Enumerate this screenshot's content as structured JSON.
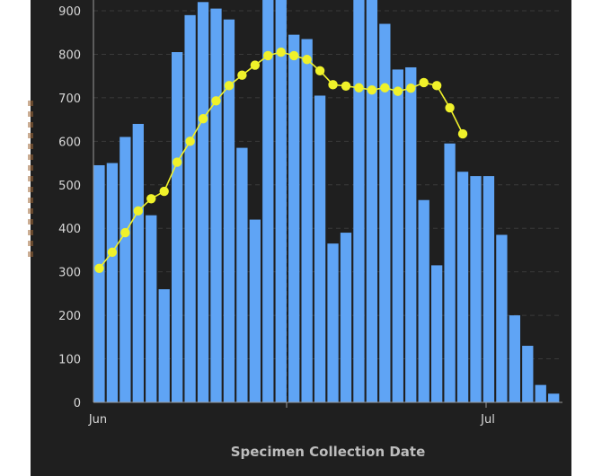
{
  "chart_data": {
    "type": "bar",
    "xlabel": "Specimen Collection Date",
    "ylabel": "",
    "ylim": [
      0,
      920
    ],
    "yticks": [
      0,
      100,
      200,
      300,
      400,
      500,
      600,
      700,
      800,
      900
    ],
    "ytick_labels": [
      "0",
      "100",
      "200",
      "300",
      "400",
      "500",
      "600",
      "700",
      "800",
      "900"
    ],
    "xtick_labels": [
      "Jun",
      "Jul"
    ],
    "grid": true,
    "colors": {
      "bar": "#5fa4f5",
      "line": "#f0f22a",
      "background": "#1f1f1f",
      "grid": "#3a3a3a"
    },
    "series": [
      {
        "type": "bar",
        "values": [
          545,
          550,
          610,
          640,
          430,
          260,
          805,
          890,
          920,
          905,
          880,
          585,
          420,
          960,
          960,
          845,
          835,
          705,
          365,
          390,
          960,
          960,
          870,
          765,
          770,
          465,
          315,
          595,
          530,
          520,
          520,
          385,
          200,
          130,
          40,
          20
        ]
      },
      {
        "type": "line",
        "values": [
          308,
          345,
          390,
          440,
          468,
          485,
          552,
          600,
          652,
          693,
          728,
          752,
          775,
          797,
          805,
          797,
          788,
          762,
          730,
          727,
          723,
          718,
          723,
          715,
          722,
          735,
          728,
          677,
          617
        ]
      }
    ]
  }
}
